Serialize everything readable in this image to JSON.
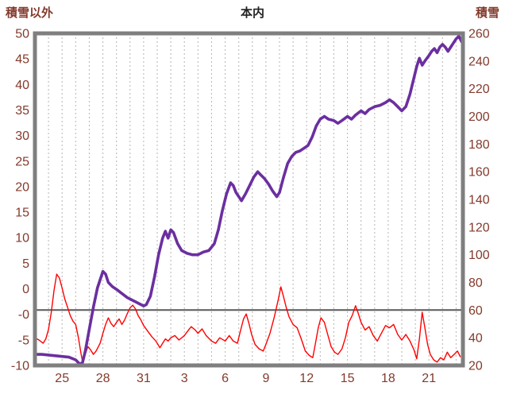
{
  "chart_data": {
    "type": "line",
    "title": "本内",
    "left_axis": {
      "label": "積雪以外",
      "tick_labels": [
        "50",
        "45",
        "40",
        "35",
        "30",
        "25",
        "20",
        "15",
        "10",
        "5",
        "0",
        "-0",
        "-5",
        "-10"
      ],
      "range": [
        -10,
        50
      ]
    },
    "right_axis": {
      "label": "積雪",
      "tick_labels": [
        "260",
        "240",
        "220",
        "200",
        "180",
        "160",
        "140",
        "120",
        "100",
        "80",
        "60",
        "40",
        "20"
      ],
      "range": [
        20,
        260
      ]
    },
    "x_axis": {
      "tick_labels": [
        "25",
        "28",
        "31",
        "3",
        "6",
        "9",
        "12",
        "15",
        "18",
        "21"
      ],
      "tick_positions": [
        2,
        5,
        8,
        11,
        14,
        17,
        20,
        23,
        26,
        29
      ],
      "domain": [
        0,
        31.5
      ],
      "grid_every": 1
    },
    "zero_line_value": 0,
    "grid": "vertical-dashed",
    "legend": "none",
    "style": {
      "text": "#833A2C",
      "title_text": "#222222",
      "frame": "#7F7F7F",
      "grid_color": "#B5B5B5",
      "zero_line": "#595959",
      "background": "#FFFFFF"
    },
    "series": [
      {
        "name": "red-line",
        "axis": "left",
        "color": "#FF0000",
        "width": 1.4,
        "points": [
          [
            0,
            -5
          ],
          [
            0.3,
            -5.4
          ],
          [
            0.6,
            -6
          ],
          [
            0.8,
            -5.2
          ],
          [
            1,
            -3.5
          ],
          [
            1.2,
            -0.5
          ],
          [
            1.4,
            3.5
          ],
          [
            1.6,
            6.5
          ],
          [
            1.8,
            5.8
          ],
          [
            2,
            4
          ],
          [
            2.2,
            2
          ],
          [
            2.4,
            0.5
          ],
          [
            2.6,
            -1
          ],
          [
            2.8,
            -2
          ],
          [
            3,
            -2.6
          ],
          [
            3.2,
            -5
          ],
          [
            3.4,
            -8
          ],
          [
            3.5,
            -9.3
          ],
          [
            3.7,
            -8
          ],
          [
            3.9,
            -6.6
          ],
          [
            4.1,
            -7.2
          ],
          [
            4.3,
            -8
          ],
          [
            4.5,
            -7.4
          ],
          [
            4.8,
            -6
          ],
          [
            5,
            -4.2
          ],
          [
            5.2,
            -2.6
          ],
          [
            5.4,
            -1.4
          ],
          [
            5.6,
            -2.4
          ],
          [
            5.8,
            -3
          ],
          [
            6,
            -2.2
          ],
          [
            6.2,
            -1.6
          ],
          [
            6.4,
            -2.6
          ],
          [
            6.6,
            -1.8
          ],
          [
            6.8,
            -0.6
          ],
          [
            7,
            0.4
          ],
          [
            7.2,
            0.9
          ],
          [
            7.4,
            0.2
          ],
          [
            7.6,
            -1
          ],
          [
            7.8,
            -1.8
          ],
          [
            8,
            -2.8
          ],
          [
            8.3,
            -3.8
          ],
          [
            8.6,
            -4.8
          ],
          [
            8.9,
            -5.6
          ],
          [
            9.2,
            -6.8
          ],
          [
            9.4,
            -6
          ],
          [
            9.6,
            -5.2
          ],
          [
            9.8,
            -5.6
          ],
          [
            10,
            -5
          ],
          [
            10.3,
            -4.6
          ],
          [
            10.6,
            -5.4
          ],
          [
            11,
            -4.6
          ],
          [
            11.3,
            -3.6
          ],
          [
            11.5,
            -3
          ],
          [
            11.8,
            -3.6
          ],
          [
            12,
            -4.2
          ],
          [
            12.3,
            -3.4
          ],
          [
            12.6,
            -4.6
          ],
          [
            13,
            -5.6
          ],
          [
            13.3,
            -6
          ],
          [
            13.6,
            -5
          ],
          [
            14,
            -5.6
          ],
          [
            14.3,
            -4.6
          ],
          [
            14.6,
            -5.6
          ],
          [
            14.9,
            -6
          ],
          [
            15.1,
            -4
          ],
          [
            15.35,
            -1.6
          ],
          [
            15.55,
            -0.7
          ],
          [
            15.75,
            -2.4
          ],
          [
            15.95,
            -4.4
          ],
          [
            16.2,
            -6.2
          ],
          [
            16.5,
            -7
          ],
          [
            16.8,
            -7.4
          ],
          [
            17,
            -6.2
          ],
          [
            17.3,
            -4.2
          ],
          [
            17.6,
            -1.4
          ],
          [
            17.9,
            1.8
          ],
          [
            18.1,
            4.2
          ],
          [
            18.3,
            2.4
          ],
          [
            18.5,
            0.4
          ],
          [
            18.7,
            -1.2
          ],
          [
            19,
            -2.6
          ],
          [
            19.3,
            -3.2
          ],
          [
            19.6,
            -5.2
          ],
          [
            19.9,
            -7.4
          ],
          [
            20.2,
            -8.2
          ],
          [
            20.45,
            -8.6
          ],
          [
            20.65,
            -6
          ],
          [
            20.85,
            -3.2
          ],
          [
            21.05,
            -1.4
          ],
          [
            21.3,
            -2.2
          ],
          [
            21.55,
            -4.4
          ],
          [
            21.8,
            -6.6
          ],
          [
            22.05,
            -7.6
          ],
          [
            22.3,
            -8
          ],
          [
            22.6,
            -7
          ],
          [
            22.85,
            -5
          ],
          [
            23.1,
            -2.2
          ],
          [
            23.35,
            -1
          ],
          [
            23.6,
            0.8
          ],
          [
            23.8,
            -0.6
          ],
          [
            24,
            -2.2
          ],
          [
            24.3,
            -3.6
          ],
          [
            24.6,
            -3
          ],
          [
            24.9,
            -4.6
          ],
          [
            25.2,
            -5.6
          ],
          [
            25.5,
            -4.2
          ],
          [
            25.8,
            -2.8
          ],
          [
            26.1,
            -3.2
          ],
          [
            26.4,
            -2.6
          ],
          [
            26.7,
            -4.4
          ],
          [
            27,
            -5.4
          ],
          [
            27.3,
            -4.4
          ],
          [
            27.6,
            -5.6
          ],
          [
            27.9,
            -7.2
          ],
          [
            28.1,
            -8.8
          ],
          [
            28.3,
            -5.2
          ],
          [
            28.5,
            -0.4
          ],
          [
            28.7,
            -3.2
          ],
          [
            28.9,
            -6.2
          ],
          [
            29.1,
            -8
          ],
          [
            29.35,
            -9
          ],
          [
            29.6,
            -9.4
          ],
          [
            29.85,
            -8.6
          ],
          [
            30.1,
            -9
          ],
          [
            30.35,
            -7.6
          ],
          [
            30.6,
            -8.6
          ],
          [
            30.85,
            -8
          ],
          [
            31.1,
            -7.4
          ],
          [
            31.3,
            -8.4
          ]
        ]
      },
      {
        "name": "purple-line",
        "axis": "right",
        "color": "#6B2FA0",
        "width": 3.6,
        "points": [
          [
            0,
            28
          ],
          [
            0.5,
            28
          ],
          [
            1,
            27.5
          ],
          [
            1.5,
            27
          ],
          [
            2,
            26.5
          ],
          [
            2.5,
            26
          ],
          [
            3,
            24
          ],
          [
            3.3,
            21
          ],
          [
            3.5,
            22
          ],
          [
            3.7,
            30
          ],
          [
            4,
            46
          ],
          [
            4.3,
            62
          ],
          [
            4.6,
            76
          ],
          [
            5,
            88
          ],
          [
            5.2,
            86
          ],
          [
            5.4,
            80
          ],
          [
            5.7,
            77
          ],
          [
            6,
            75
          ],
          [
            6.4,
            72
          ],
          [
            6.8,
            69
          ],
          [
            7.2,
            67
          ],
          [
            7.6,
            65
          ],
          [
            8,
            63
          ],
          [
            8.2,
            64
          ],
          [
            8.5,
            70
          ],
          [
            8.8,
            84
          ],
          [
            9.1,
            100
          ],
          [
            9.4,
            112
          ],
          [
            9.6,
            117
          ],
          [
            9.8,
            112
          ],
          [
            10,
            118
          ],
          [
            10.2,
            116
          ],
          [
            10.5,
            108
          ],
          [
            10.8,
            103
          ],
          [
            11.2,
            101
          ],
          [
            11.6,
            100
          ],
          [
            12,
            100
          ],
          [
            12.4,
            102
          ],
          [
            12.8,
            103
          ],
          [
            13.2,
            108
          ],
          [
            13.5,
            118
          ],
          [
            13.8,
            132
          ],
          [
            14.1,
            144
          ],
          [
            14.4,
            152
          ],
          [
            14.6,
            150
          ],
          [
            14.8,
            145
          ],
          [
            15,
            142
          ],
          [
            15.2,
            139
          ],
          [
            15.5,
            144
          ],
          [
            15.8,
            150
          ],
          [
            16.1,
            156
          ],
          [
            16.4,
            160
          ],
          [
            16.6,
            158
          ],
          [
            16.9,
            155
          ],
          [
            17.2,
            151
          ],
          [
            17.5,
            146
          ],
          [
            17.8,
            142
          ],
          [
            18,
            145
          ],
          [
            18.3,
            156
          ],
          [
            18.6,
            166
          ],
          [
            18.9,
            171
          ],
          [
            19.2,
            174
          ],
          [
            19.5,
            175
          ],
          [
            19.8,
            177
          ],
          [
            20.1,
            179
          ],
          [
            20.4,
            185
          ],
          [
            20.7,
            193
          ],
          [
            21,
            198
          ],
          [
            21.3,
            200
          ],
          [
            21.6,
            198
          ],
          [
            22,
            197
          ],
          [
            22.3,
            195
          ],
          [
            22.6,
            197
          ],
          [
            23,
            200
          ],
          [
            23.3,
            198
          ],
          [
            23.6,
            201
          ],
          [
            24,
            204
          ],
          [
            24.3,
            202
          ],
          [
            24.6,
            205
          ],
          [
            25,
            207
          ],
          [
            25.4,
            208
          ],
          [
            25.8,
            210
          ],
          [
            26.1,
            212
          ],
          [
            26.4,
            210
          ],
          [
            26.7,
            207
          ],
          [
            27,
            204
          ],
          [
            27.3,
            207
          ],
          [
            27.6,
            216
          ],
          [
            27.9,
            228
          ],
          [
            28.1,
            236
          ],
          [
            28.3,
            242
          ],
          [
            28.5,
            237
          ],
          [
            28.7,
            240
          ],
          [
            29,
            244
          ],
          [
            29.2,
            247
          ],
          [
            29.4,
            249
          ],
          [
            29.6,
            246
          ],
          [
            29.8,
            250
          ],
          [
            30,
            252
          ],
          [
            30.2,
            250
          ],
          [
            30.4,
            247
          ],
          [
            30.6,
            250
          ],
          [
            30.8,
            253
          ],
          [
            31,
            256
          ],
          [
            31.2,
            258
          ],
          [
            31.4,
            254
          ]
        ]
      }
    ]
  }
}
